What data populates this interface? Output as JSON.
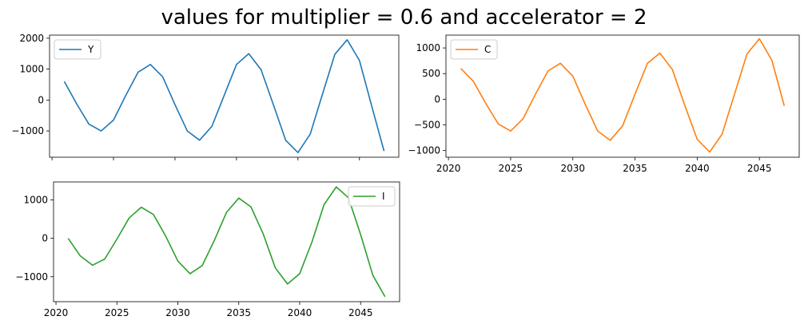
{
  "title": "values for multiplier = 0.6 and accelerator = 2",
  "chart_data": [
    {
      "type": "line",
      "series": [
        {
          "name": "Y",
          "color": "#1f77b4",
          "x": [
            2021,
            2022,
            2023,
            2024,
            2025,
            2026,
            2027,
            2028,
            2029,
            2030,
            2031,
            2032,
            2033,
            2034,
            2035,
            2036,
            2037,
            2038,
            2039,
            2040,
            2041,
            2042,
            2043,
            2044,
            2045,
            2046,
            2047
          ],
          "values": [
            600,
            -120,
            -780,
            -1000,
            -650,
            150,
            900,
            1150,
            750,
            -150,
            -1000,
            -1300,
            -850,
            150,
            1150,
            1500,
            980,
            -150,
            -1300,
            -1700,
            -1100,
            200,
            1480,
            1950,
            1280,
            -200,
            -1650
          ]
        }
      ],
      "xlim": [
        2019.8,
        2048.2
      ],
      "ylim": [
        -1850,
        2100
      ],
      "xticks": [
        2020,
        2025,
        2030,
        2035,
        2040,
        2045
      ],
      "yticks": [
        2000,
        1000,
        0,
        -1000
      ],
      "ytick_labels": [
        "2000",
        "1000",
        "0",
        "−1000"
      ],
      "show_xtick_labels": false,
      "legend": "upper-left"
    },
    {
      "type": "line",
      "series": [
        {
          "name": "C",
          "color": "#ff7f0e",
          "x": [
            2021,
            2022,
            2023,
            2024,
            2025,
            2026,
            2027,
            2028,
            2029,
            2030,
            2031,
            2032,
            2033,
            2034,
            2035,
            2036,
            2037,
            2038,
            2039,
            2040,
            2041,
            2042,
            2043,
            2044,
            2045,
            2046,
            2047
          ],
          "values": [
            600,
            350,
            -80,
            -480,
            -620,
            -380,
            100,
            550,
            700,
            450,
            -100,
            -620,
            -800,
            -520,
            100,
            700,
            900,
            580,
            -120,
            -780,
            -1030,
            -680,
            100,
            880,
            1180,
            760,
            -130
          ]
        }
      ],
      "xlim": [
        2019.8,
        2048.2
      ],
      "ylim": [
        -1130,
        1250
      ],
      "xticks": [
        2020,
        2025,
        2030,
        2035,
        2040,
        2045
      ],
      "xtick_labels": [
        "2020",
        "2025",
        "2030",
        "2035",
        "2040",
        "2045"
      ],
      "yticks": [
        1000,
        500,
        0,
        -500,
        -1000
      ],
      "ytick_labels": [
        "1000",
        "500",
        "0",
        "−500",
        "−1000"
      ],
      "show_xtick_labels": true,
      "legend": "upper-left"
    },
    {
      "type": "line",
      "series": [
        {
          "name": "I",
          "color": "#2ca02c",
          "x": [
            2021,
            2022,
            2023,
            2024,
            2025,
            2026,
            2027,
            2028,
            2029,
            2030,
            2031,
            2032,
            2033,
            2034,
            2035,
            2036,
            2037,
            2038,
            2039,
            2040,
            2041,
            2042,
            2043,
            2044,
            2045,
            2046,
            2047
          ],
          "values": [
            0,
            -460,
            -700,
            -540,
            -20,
            530,
            810,
            620,
            60,
            -590,
            -920,
            -710,
            -50,
            680,
            1050,
            820,
            120,
            -770,
            -1190,
            -920,
            -100,
            880,
            1340,
            1060,
            100,
            -960,
            -1520
          ]
        }
      ],
      "xlim": [
        2019.8,
        2048.2
      ],
      "ylim": [
        -1650,
        1470
      ],
      "xticks": [
        2020,
        2025,
        2030,
        2035,
        2040,
        2045
      ],
      "xtick_labels": [
        "2020",
        "2025",
        "2030",
        "2035",
        "2040",
        "2045"
      ],
      "yticks": [
        1000,
        0,
        -1000
      ],
      "ytick_labels": [
        "1000",
        "0",
        "−1000"
      ],
      "show_xtick_labels": true,
      "legend": "upper-right"
    }
  ]
}
